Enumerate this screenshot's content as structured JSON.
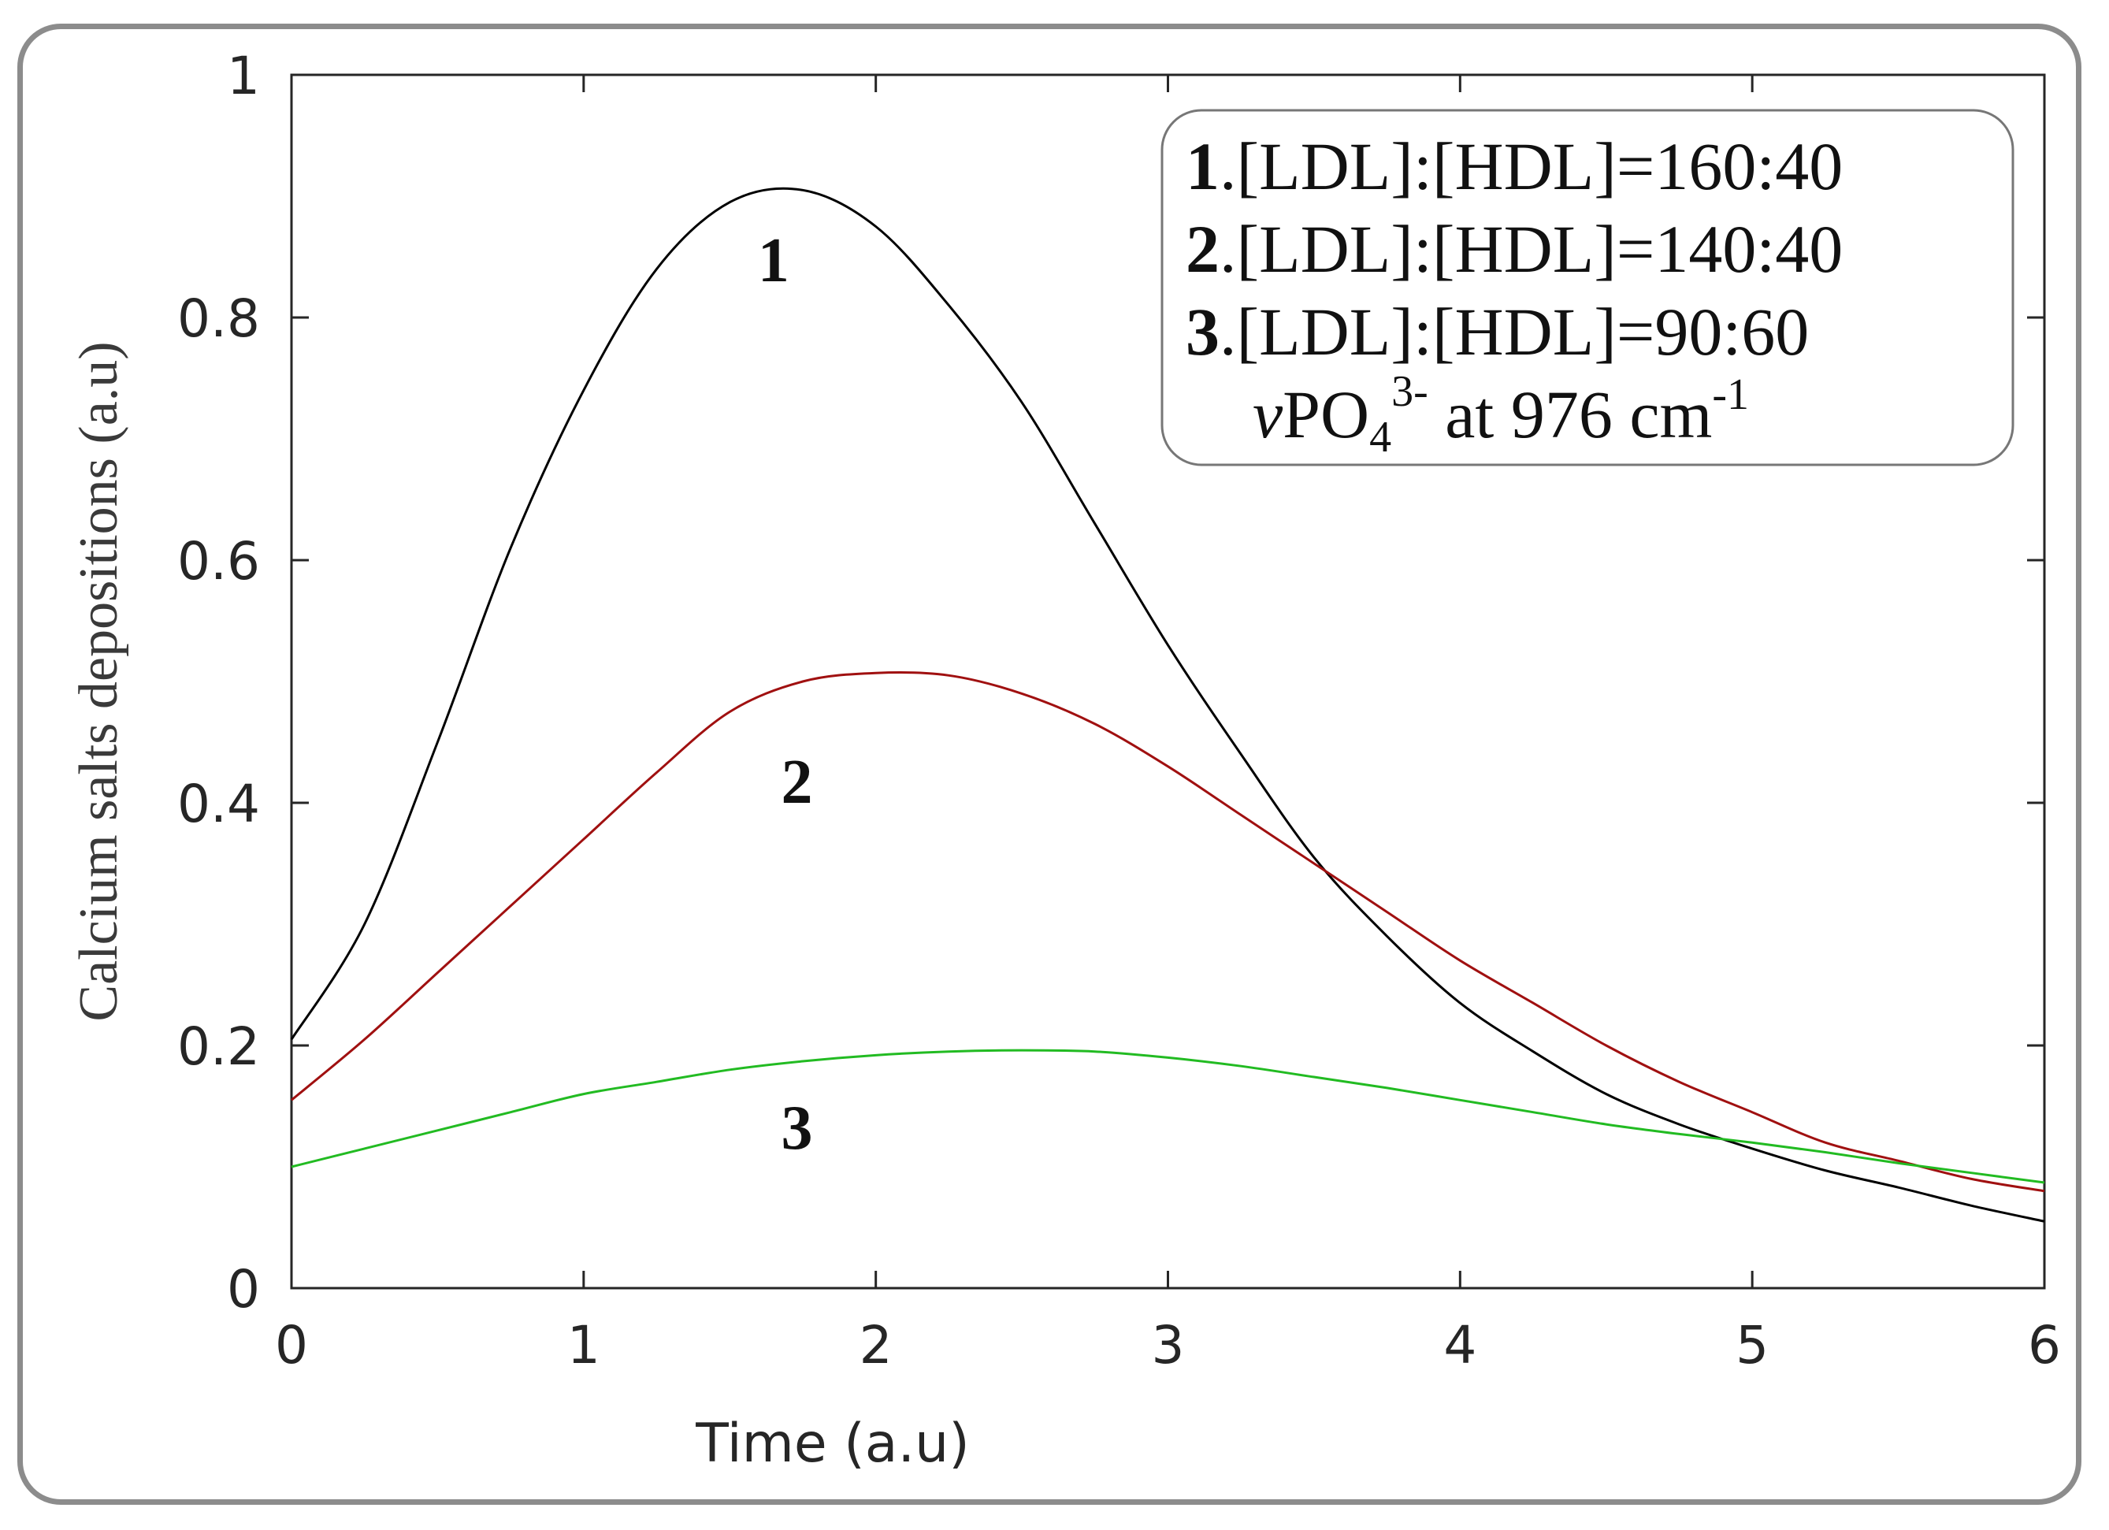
{
  "chart_data": {
    "type": "line",
    "xlabel": "Time (a.u)",
    "ylabel": "Calcium salts depositions (a.u)",
    "xlim": [
      0,
      6
    ],
    "ylim": [
      0,
      1
    ],
    "xticks": [
      0,
      1,
      2,
      3,
      4,
      5,
      6
    ],
    "yticks": [
      0,
      0.2,
      0.4,
      0.6,
      0.8,
      1
    ],
    "xtick_labels": [
      "0",
      "1",
      "2",
      "3",
      "4",
      "5",
      "6"
    ],
    "ytick_labels": [
      "0",
      "0.2",
      "0.4",
      "0.6",
      "0.8",
      "1"
    ],
    "grid": false,
    "legend_position": "top-right",
    "x": [
      0,
      0.25,
      0.5,
      0.75,
      1,
      1.25,
      1.5,
      1.75,
      2,
      2.25,
      2.5,
      2.75,
      3,
      3.25,
      3.5,
      3.75,
      4,
      4.25,
      4.5,
      4.75,
      5,
      5.25,
      5.5,
      5.75,
      6
    ],
    "series": [
      {
        "label": "1",
        "color": "#000000",
        "values": [
          0.205,
          0.3,
          0.45,
          0.61,
          0.74,
          0.84,
          0.895,
          0.905,
          0.875,
          0.81,
          0.73,
          0.63,
          0.53,
          0.44,
          0.355,
          0.29,
          0.235,
          0.195,
          0.16,
          0.135,
          0.115,
          0.097,
          0.083,
          0.068,
          0.055
        ]
      },
      {
        "label": "2",
        "color": "#a01010",
        "values": [
          0.155,
          0.205,
          0.26,
          0.315,
          0.37,
          0.425,
          0.475,
          0.5,
          0.507,
          0.505,
          0.49,
          0.465,
          0.43,
          0.39,
          0.35,
          0.31,
          0.27,
          0.235,
          0.2,
          0.17,
          0.145,
          0.12,
          0.105,
          0.09,
          0.08
        ]
      },
      {
        "label": "3",
        "color": "#22bb22",
        "values": [
          0.1,
          0.115,
          0.13,
          0.145,
          0.16,
          0.17,
          0.18,
          0.187,
          0.192,
          0.195,
          0.196,
          0.195,
          0.19,
          0.183,
          0.174,
          0.165,
          0.155,
          0.145,
          0.135,
          0.127,
          0.12,
          0.112,
          0.103,
          0.095,
          0.087
        ]
      }
    ],
    "curve_labels": [
      {
        "text": "1",
        "x": 1.65,
        "y": 0.83
      },
      {
        "text": "2",
        "x": 1.73,
        "y": 0.4
      },
      {
        "text": "3",
        "x": 1.73,
        "y": 0.115
      }
    ],
    "legend": [
      {
        "num": "1",
        "text": ".[LDL]:[HDL]=160:40"
      },
      {
        "num": "2",
        "text": ".[LDL]:[HDL]=140:40"
      },
      {
        "num": "3",
        "text": ".[LDL]:[HDL]=90:60"
      }
    ],
    "legend_note": {
      "prefix": "v",
      "ion": "PO",
      "subscript": "4",
      "superscript": "3-",
      "middle": " at 976 cm",
      "exponent": "-1"
    }
  }
}
